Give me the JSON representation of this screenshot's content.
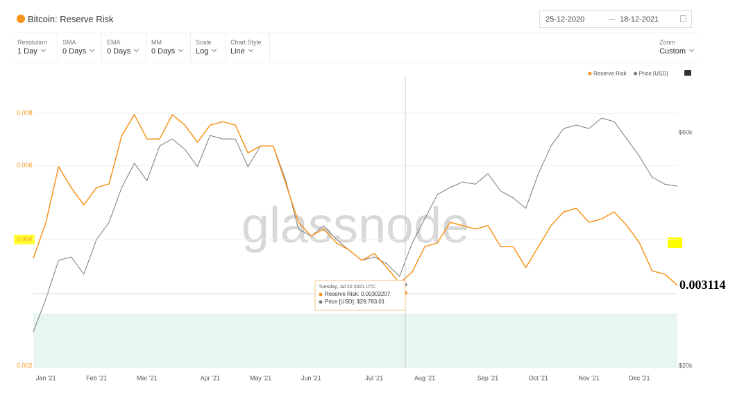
{
  "header": {
    "title": "Bitcoin: Reserve Risk",
    "date_from": "25-12-2020",
    "date_to": "18-12-2021"
  },
  "toolbar": [
    {
      "label": "Resolution",
      "value": "1 Day"
    },
    {
      "label": "SMA",
      "value": "0 Days"
    },
    {
      "label": "EMA",
      "value": "0 Days"
    },
    {
      "label": "MM",
      "value": "0 Days"
    },
    {
      "label": "Scale",
      "value": "Log"
    },
    {
      "label": "Chart Style",
      "value": "Line"
    }
  ],
  "zoom": {
    "label": "Zoom",
    "value": "Custom"
  },
  "watermark": "glassnode",
  "tooltip": {
    "title": "Tuesday, Jul 20 2021 UTC",
    "lines": [
      "Reserve Risk: 0.00303207",
      "Price [USD]: $29,783.01"
    ]
  },
  "chart_data": {
    "type": "line",
    "log_scale": true,
    "grid": true,
    "categories": [
      null,
      "Jan '21",
      null,
      null,
      null,
      "Feb '21",
      null,
      null,
      null,
      "Mar '21",
      null,
      null,
      null,
      null,
      "Apr '21",
      null,
      null,
      null,
      "May '21",
      null,
      null,
      null,
      "Jun '21",
      null,
      null,
      null,
      null,
      "Jul '21",
      null,
      null,
      null,
      "Aug '21",
      null,
      null,
      null,
      null,
      "Sep '21",
      null,
      null,
      null,
      "Oct '21",
      null,
      null,
      null,
      "Nov '21",
      null,
      null,
      null,
      "Dec '21",
      null,
      null,
      null
    ],
    "series": [
      {
        "name": "Reserve Risk",
        "color": "#f7931a",
        "values": [
          0.00361,
          0.0044,
          0.00597,
          0.00532,
          0.00484,
          0.00532,
          0.00543,
          0.00708,
          0.00794,
          0.00695,
          0.00695,
          0.00794,
          0.0075,
          0.00682,
          0.0075,
          0.00764,
          0.0075,
          0.00644,
          0.00669,
          0.00669,
          0.00543,
          0.0044,
          0.00408,
          0.00424,
          0.00393,
          0.00378,
          0.00357,
          0.00371,
          0.00343,
          0.00315,
          0.00335,
          0.00385,
          0.00393,
          0.0044,
          0.00432,
          0.00424,
          0.00432,
          0.00385,
          0.00385,
          0.00343,
          0.00385,
          0.00432,
          0.00466,
          0.00475,
          0.0044,
          0.00448,
          0.00466,
          0.00432,
          0.00393,
          0.00337,
          0.00331,
          0.003114
        ]
      },
      {
        "name": "Price [USD]",
        "color": "#7a7a7a",
        "axis": "y2",
        "values": [
          23480,
          27460,
          32880,
          33420,
          30800,
          36260,
          39340,
          46340,
          51940,
          47860,
          56360,
          58240,
          55460,
          51120,
          59200,
          58240,
          58240,
          51120,
          56360,
          56360,
          47860,
          38080,
          36860,
          38700,
          36260,
          34520,
          32880,
          33420,
          32340,
          30500,
          35680,
          40000,
          44840,
          46340,
          47560,
          47080,
          49460,
          45580,
          44120,
          42000,
          49460,
          56360,
          61180,
          62180,
          61180,
          64240,
          63200,
          58240,
          53680,
          48660,
          47080,
          46640
        ]
      }
    ],
    "ylim": [
      0.002,
      0.0098
    ],
    "yticks": [
      0.002,
      0.004,
      0.006,
      0.008
    ],
    "y2lim": [
      20000,
      78200
    ],
    "y2ticks": [
      {
        "value": 20000,
        "label": "$20k"
      },
      {
        "value": 60000,
        "label": "$60k"
      }
    ],
    "zone": {
      "color": "#e8f6f0",
      "range": [
        0.002,
        0.00266
      ]
    }
  }
}
